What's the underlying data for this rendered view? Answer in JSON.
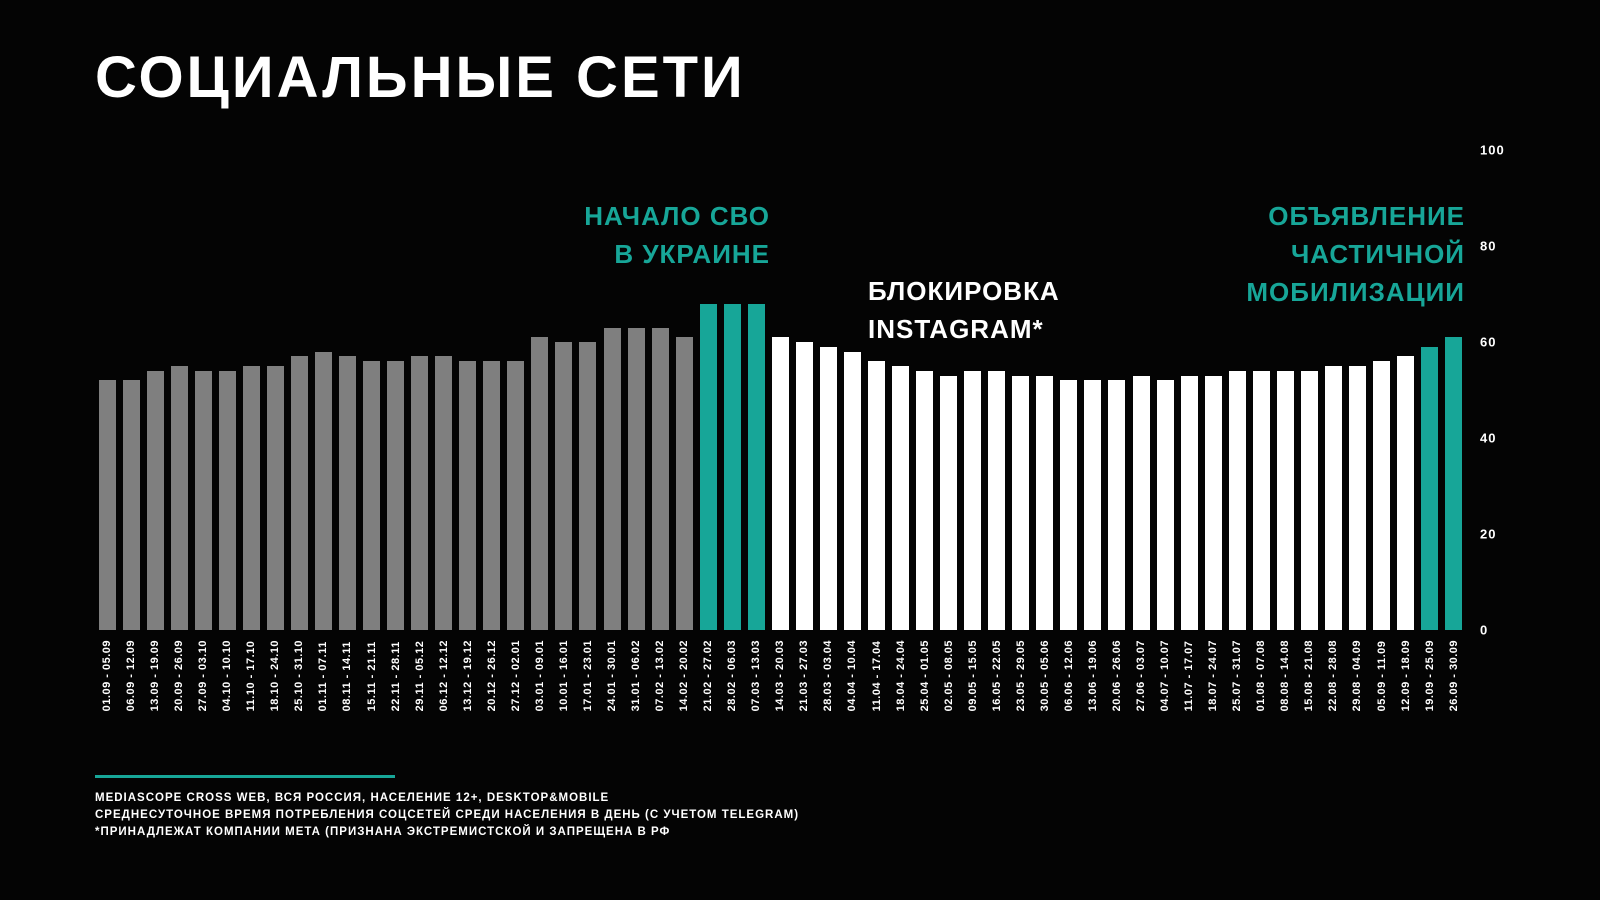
{
  "title": "СОЦИАЛЬНЫЕ СЕТИ",
  "colors": {
    "background": "#040404",
    "text": "#ffffff",
    "bar_gray": "#7f7f7f",
    "bar_white": "#ffffff",
    "accent_teal": "#17a698"
  },
  "annotations": {
    "svo_event": [
      "НАЧАЛО СВО",
      "В УКРАИНЕ"
    ],
    "instagram_block": [
      "БЛОКИРОВКА",
      "INSTAGRAM*"
    ],
    "mobilization": [
      "ОБЪЯВЛЕНИЕ",
      "ЧАСТИЧНОЙ",
      "МОБИЛИЗАЦИИ"
    ]
  },
  "footer": {
    "lines": [
      "MEDIASCOPE CROSS WEB, ВСЯ РОССИЯ, НАСЕЛЕНИЕ 12+, DESKTOP&MOBILE",
      "СРЕДНЕСУТОЧНОЕ ВРЕМЯ ПОТРЕБЛЕНИЯ СОЦСЕТЕЙ СРЕДИ НАСЕЛЕНИЯ В ДЕНЬ (С УЧЕТОМ TELEGRAM)",
      "*ПРИНАДЛЕЖАТ КОМПАНИИ МЕТА (ПРИЗНАНА ЭКСТРЕМИСТСКОЙ И ЗАПРЕЩЕНА В РФ"
    ]
  },
  "chart_data": {
    "type": "bar",
    "title": "СОЦИАЛЬНЫЕ СЕТИ",
    "xlabel": "",
    "ylabel": "",
    "ylim": [
      0,
      100
    ],
    "yticks": [
      0,
      20,
      40,
      60,
      80,
      100
    ],
    "grid": false,
    "legend": "none",
    "yaxis_position": "right",
    "categories": [
      "01.09 - 05.09",
      "06.09 - 12.09",
      "13.09 - 19.09",
      "20.09 - 26.09",
      "27.09 - 03.10",
      "04.10 - 10.10",
      "11.10 - 17.10",
      "18.10 - 24.10",
      "25.10 - 31.10",
      "01.11 - 07.11",
      "08.11 - 14.11",
      "15.11 - 21.11",
      "22.11 - 28.11",
      "29.11 - 05.12",
      "06.12 - 12.12",
      "13.12 - 19.12",
      "20.12 - 26.12",
      "27.12 - 02.01",
      "03.01 - 09.01",
      "10.01 - 16.01",
      "17.01 - 23.01",
      "24.01 - 30.01",
      "31.01 - 06.02",
      "07.02 - 13.02",
      "14.02 - 20.02",
      "21.02 - 27.02",
      "28.02 - 06.03",
      "07.03 - 13.03",
      "14.03 - 20.03",
      "21.03 - 27.03",
      "28.03 - 03.04",
      "04.04 - 10.04",
      "11.04 - 17.04",
      "18.04 - 24.04",
      "25.04 - 01.05",
      "02.05 - 08.05",
      "09.05 - 15.05",
      "16.05 - 22.05",
      "23.05 - 29.05",
      "30.05 - 05.06",
      "06.06 - 12.06",
      "13.06 - 19.06",
      "20.06 - 26.06",
      "27.06 - 03.07",
      "04.07 - 10.07",
      "11.07 - 17.07",
      "18.07 - 24.07",
      "25.07 - 31.07",
      "01.08 - 07.08",
      "08.08 - 14.08",
      "15.08 - 21.08",
      "22.08 - 28.08",
      "29.08 - 04.09",
      "05.09 - 11.09",
      "12.09 - 18.09",
      "19.09 - 25.09",
      "26.09 - 30.09"
    ],
    "values": [
      52,
      52,
      54,
      55,
      54,
      54,
      55,
      55,
      57,
      58,
      57,
      56,
      56,
      57,
      57,
      56,
      56,
      56,
      61,
      60,
      60,
      63,
      63,
      63,
      61,
      68,
      68,
      68,
      61,
      60,
      59,
      58,
      56,
      55,
      54,
      53,
      54,
      54,
      53,
      53,
      52,
      52,
      52,
      53,
      52,
      53,
      53,
      54,
      54,
      54,
      54,
      55,
      55,
      56,
      57,
      59,
      61
    ],
    "bar_colors": [
      "gray",
      "gray",
      "gray",
      "gray",
      "gray",
      "gray",
      "gray",
      "gray",
      "gray",
      "gray",
      "gray",
      "gray",
      "gray",
      "gray",
      "gray",
      "gray",
      "gray",
      "gray",
      "gray",
      "gray",
      "gray",
      "gray",
      "gray",
      "gray",
      "gray",
      "teal",
      "teal",
      "teal",
      "white",
      "white",
      "white",
      "white",
      "white",
      "white",
      "white",
      "white",
      "white",
      "white",
      "white",
      "white",
      "white",
      "white",
      "white",
      "white",
      "white",
      "white",
      "white",
      "white",
      "white",
      "white",
      "white",
      "white",
      "white",
      "white",
      "white",
      "teal",
      "teal"
    ]
  }
}
